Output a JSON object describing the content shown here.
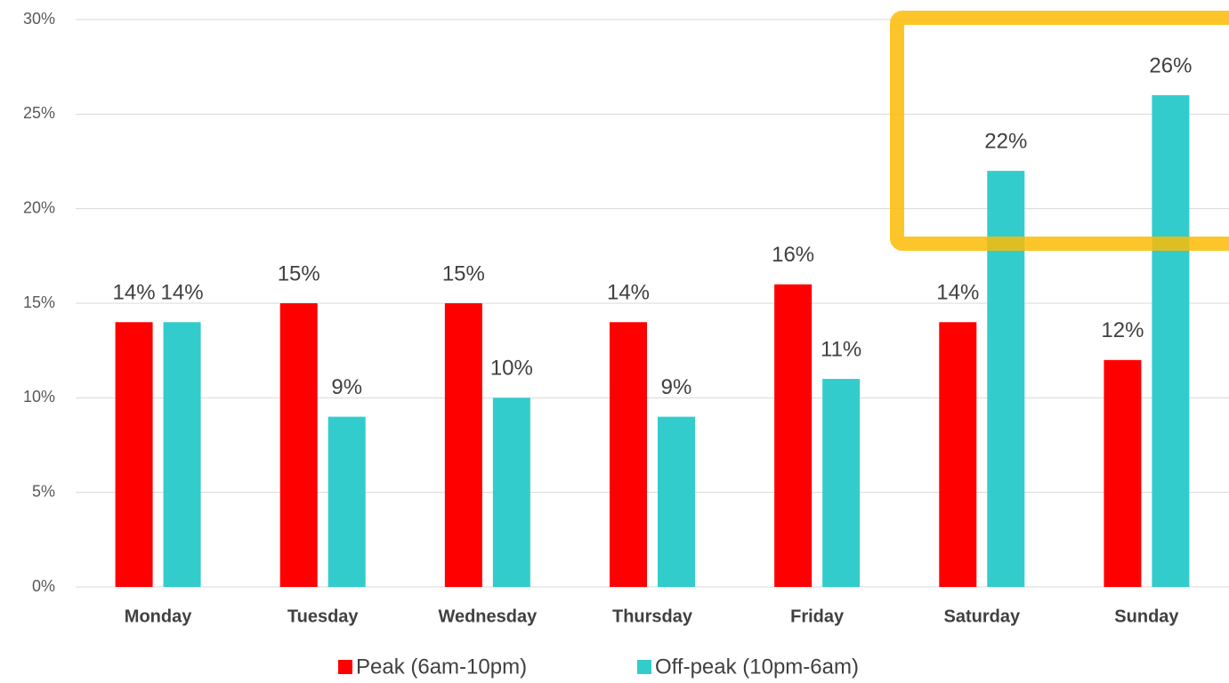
{
  "chart_data": {
    "type": "bar",
    "categories": [
      "Monday",
      "Tuesday",
      "Wednesday",
      "Thursday",
      "Friday",
      "Saturday",
      "Sunday"
    ],
    "series": [
      {
        "name": "Peak (6am-10pm)",
        "color": "#ff0000",
        "values": [
          14,
          15,
          15,
          14,
          16,
          14,
          12
        ],
        "value_labels": [
          "14%",
          "15%",
          "15%",
          "14%",
          "16%",
          "14%",
          "12%"
        ]
      },
      {
        "name": "Off-peak (10pm-6am)",
        "color": "#33cccc",
        "values": [
          14,
          9,
          10,
          9,
          11,
          22,
          26
        ],
        "value_labels": [
          "14%",
          "9%",
          "10%",
          "9%",
          "11%",
          "22%",
          "26%"
        ]
      }
    ],
    "ylim": [
      0,
      30
    ],
    "yticks": [
      {
        "value": 0,
        "label": "0%"
      },
      {
        "value": 5,
        "label": "5%"
      },
      {
        "value": 10,
        "label": "10%"
      },
      {
        "value": 15,
        "label": "15%"
      },
      {
        "value": 20,
        "label": "20%"
      },
      {
        "value": 25,
        "label": "25%"
      },
      {
        "value": 30,
        "label": "30%"
      }
    ],
    "grid": true,
    "legend": "bottom"
  }
}
